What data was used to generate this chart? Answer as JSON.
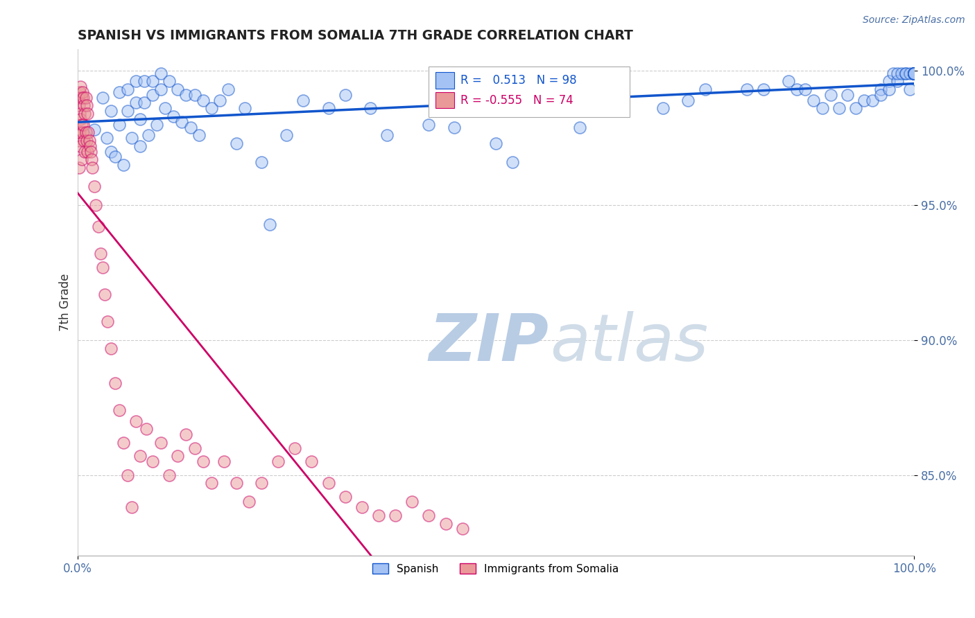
{
  "title": "SPANISH VS IMMIGRANTS FROM SOMALIA 7TH GRADE CORRELATION CHART",
  "source_text": "Source: ZipAtlas.com",
  "ylabel": "7th Grade",
  "r_spanish": 0.513,
  "n_spanish": 98,
  "r_somalia": -0.555,
  "n_somalia": 74,
  "color_spanish": "#a4c2f4",
  "color_somalia": "#ea9999",
  "color_trendline_spanish": "#1155cc",
  "color_trendline_somalia": "#cc0066",
  "color_watermark": "#c9d9f0",
  "xlim": [
    0.0,
    1.0
  ],
  "ylim": [
    0.82,
    1.008
  ],
  "ytick_positions": [
    0.85,
    0.9,
    0.95,
    1.0
  ],
  "ytick_labels": [
    "85.0%",
    "90.0%",
    "95.0%",
    "100.0%"
  ],
  "xtick_positions": [
    0.0,
    1.0
  ],
  "xtick_labels": [
    "0.0%",
    "100.0%"
  ],
  "spanish_x": [
    0.02,
    0.03,
    0.035,
    0.04,
    0.04,
    0.045,
    0.05,
    0.05,
    0.055,
    0.06,
    0.06,
    0.065,
    0.07,
    0.07,
    0.075,
    0.075,
    0.08,
    0.08,
    0.085,
    0.09,
    0.09,
    0.095,
    0.1,
    0.1,
    0.105,
    0.11,
    0.115,
    0.12,
    0.125,
    0.13,
    0.135,
    0.14,
    0.145,
    0.15,
    0.16,
    0.17,
    0.18,
    0.19,
    0.2,
    0.22,
    0.23,
    0.25,
    0.27,
    0.3,
    0.32,
    0.35,
    0.37,
    0.42,
    0.45,
    0.5,
    0.52,
    0.55,
    0.6,
    0.65,
    0.7,
    0.73,
    0.75,
    0.8,
    0.82,
    0.85,
    0.86,
    0.87,
    0.88,
    0.89,
    0.9,
    0.91,
    0.92,
    0.93,
    0.94,
    0.95,
    0.96,
    0.96,
    0.97,
    0.97,
    0.975,
    0.98,
    0.98,
    0.985,
    0.99,
    0.99,
    0.995,
    0.995,
    1.0,
    1.0,
    1.0,
    1.0,
    1.0,
    1.0,
    1.0,
    1.0,
    1.0,
    1.0,
    1.0,
    1.0,
    1.0,
    1.0,
    1.0,
    1.0
  ],
  "spanish_y": [
    0.978,
    0.99,
    0.975,
    0.985,
    0.97,
    0.968,
    0.992,
    0.98,
    0.965,
    0.993,
    0.985,
    0.975,
    0.996,
    0.988,
    0.982,
    0.972,
    0.996,
    0.988,
    0.976,
    0.996,
    0.991,
    0.98,
    0.999,
    0.993,
    0.986,
    0.996,
    0.983,
    0.993,
    0.981,
    0.991,
    0.979,
    0.991,
    0.976,
    0.989,
    0.986,
    0.989,
    0.993,
    0.973,
    0.986,
    0.966,
    0.943,
    0.976,
    0.989,
    0.986,
    0.991,
    0.986,
    0.976,
    0.98,
    0.979,
    0.973,
    0.966,
    0.986,
    0.979,
    0.991,
    0.986,
    0.989,
    0.993,
    0.993,
    0.993,
    0.996,
    0.993,
    0.993,
    0.989,
    0.986,
    0.991,
    0.986,
    0.991,
    0.986,
    0.989,
    0.989,
    0.993,
    0.991,
    0.996,
    0.993,
    0.999,
    0.996,
    0.999,
    0.999,
    0.999,
    0.999,
    0.999,
    0.993,
    0.999,
    0.999,
    0.999,
    0.999,
    0.999,
    0.999,
    0.999,
    0.999,
    0.999,
    0.999,
    0.999,
    0.999,
    0.999,
    0.999,
    0.999,
    0.999
  ],
  "somalia_x": [
    0.001,
    0.001,
    0.002,
    0.002,
    0.002,
    0.003,
    0.003,
    0.003,
    0.004,
    0.004,
    0.004,
    0.005,
    0.005,
    0.005,
    0.006,
    0.006,
    0.007,
    0.007,
    0.008,
    0.008,
    0.009,
    0.009,
    0.01,
    0.01,
    0.011,
    0.011,
    0.012,
    0.012,
    0.013,
    0.014,
    0.015,
    0.016,
    0.017,
    0.018,
    0.02,
    0.022,
    0.025,
    0.028,
    0.03,
    0.033,
    0.036,
    0.04,
    0.045,
    0.05,
    0.055,
    0.06,
    0.065,
    0.07,
    0.075,
    0.082,
    0.09,
    0.1,
    0.11,
    0.12,
    0.13,
    0.14,
    0.15,
    0.16,
    0.175,
    0.19,
    0.205,
    0.22,
    0.24,
    0.26,
    0.28,
    0.3,
    0.32,
    0.34,
    0.36,
    0.38,
    0.4,
    0.42,
    0.44,
    0.46
  ],
  "somalia_y": [
    0.99,
    0.977,
    0.987,
    0.974,
    0.964,
    0.992,
    0.984,
    0.977,
    0.994,
    0.982,
    0.972,
    0.99,
    0.98,
    0.967,
    0.992,
    0.977,
    0.99,
    0.98,
    0.987,
    0.974,
    0.984,
    0.97,
    0.99,
    0.977,
    0.987,
    0.974,
    0.984,
    0.97,
    0.977,
    0.974,
    0.972,
    0.97,
    0.967,
    0.964,
    0.957,
    0.95,
    0.942,
    0.932,
    0.927,
    0.917,
    0.907,
    0.897,
    0.884,
    0.874,
    0.862,
    0.85,
    0.838,
    0.87,
    0.857,
    0.867,
    0.855,
    0.862,
    0.85,
    0.857,
    0.865,
    0.86,
    0.855,
    0.847,
    0.855,
    0.847,
    0.84,
    0.847,
    0.855,
    0.86,
    0.855,
    0.847,
    0.842,
    0.838,
    0.835,
    0.835,
    0.84,
    0.835,
    0.832,
    0.83
  ]
}
